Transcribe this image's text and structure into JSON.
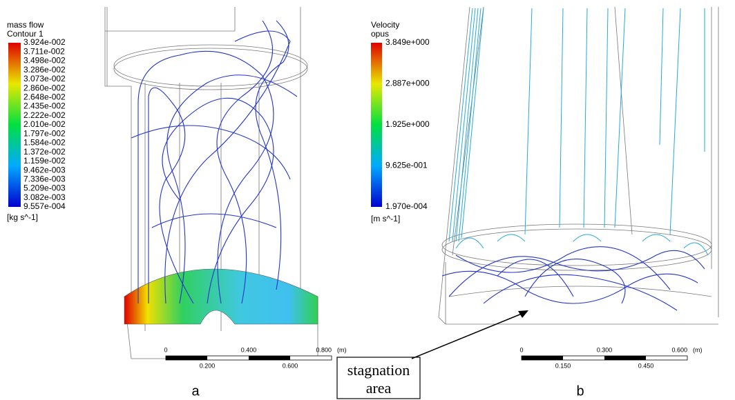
{
  "panel_a": {
    "legend_title": "mass flow",
    "legend_subtitle": "Contour 1",
    "levels": [
      "3.924e-002",
      "3.711e-002",
      "3.498e-002",
      "3.286e-002",
      "3.073e-002",
      "2.860e-002",
      "2.648e-002",
      "2.435e-002",
      "2.222e-002",
      "2.010e-002",
      "1.797e-002",
      "1.584e-002",
      "1.372e-002",
      "1.159e-002",
      "9.462e-003",
      "7.336e-003",
      "5.209e-003",
      "3.082e-003",
      "9.557e-004"
    ],
    "unit": "[kg s^-1]",
    "scale_top": [
      "0",
      "0.400",
      "0.800"
    ],
    "scale_unit": "(m)",
    "scale_bottom": [
      "0.200",
      "0.600"
    ],
    "caption": "a"
  },
  "panel_b": {
    "legend_title": "Velocity",
    "legend_subtitle": "opus",
    "levels": [
      "3.849e+000",
      "2.887e+000",
      "1.925e+000",
      "9.625e-001",
      "1.970e-004"
    ],
    "unit": "[m s^-1]",
    "scale_top": [
      "0",
      "0.300",
      "0.600"
    ],
    "scale_unit": "(m)",
    "scale_bottom": [
      "0.150",
      "0.450"
    ],
    "caption": "b"
  },
  "annotation": {
    "lines": [
      "stagnation",
      "area"
    ]
  }
}
